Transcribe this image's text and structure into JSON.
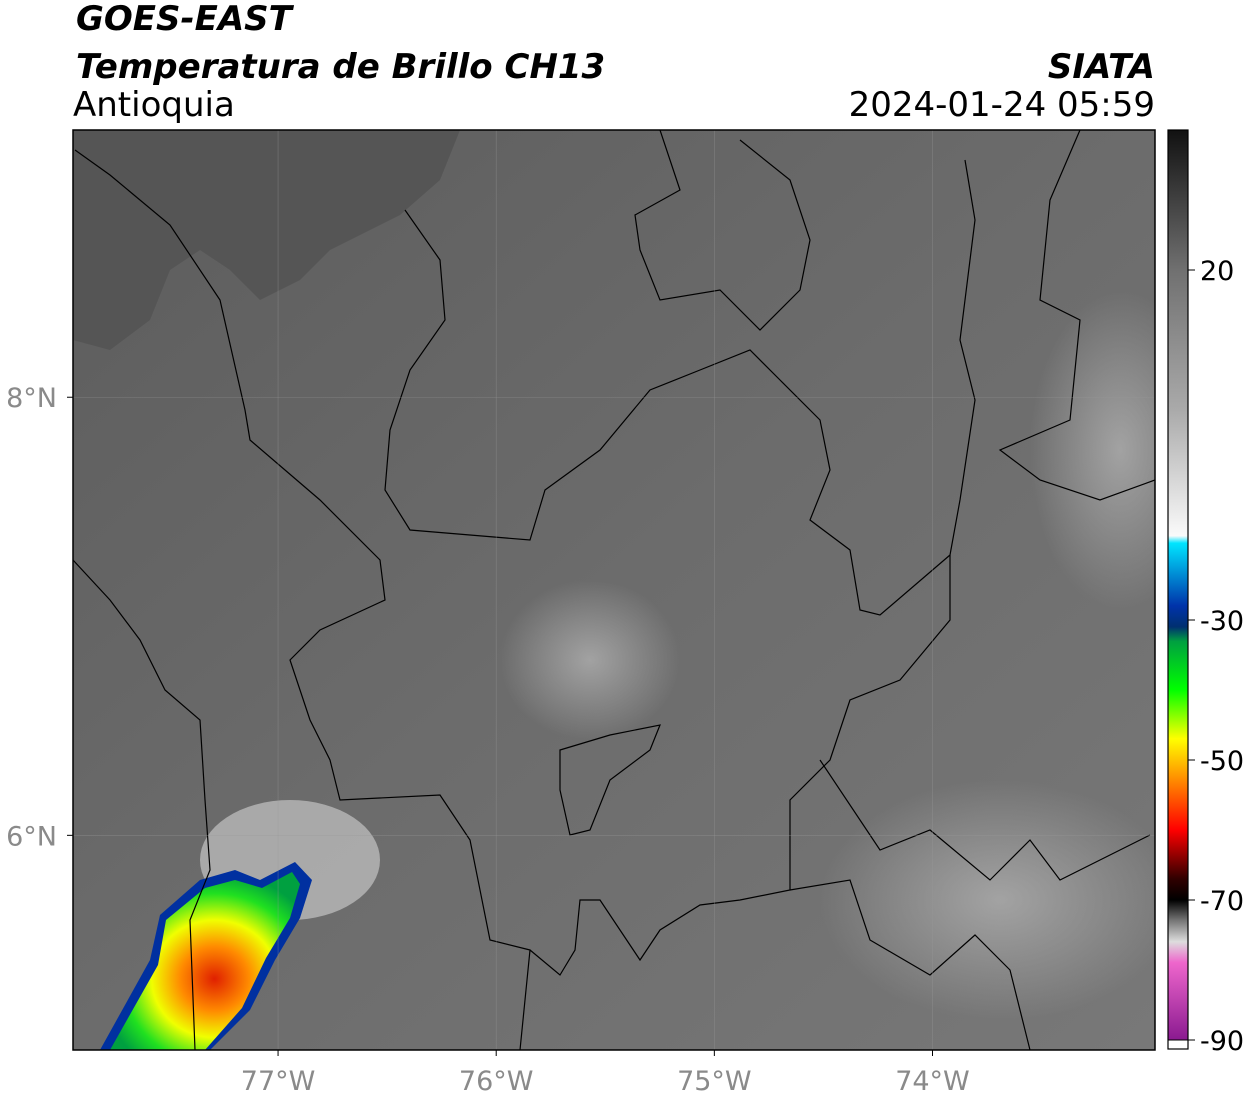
{
  "header": {
    "satellite": "GOES-EAST",
    "product": "Temperatura de Brillo CH13",
    "agency": "SIATA",
    "region": "Antioquia",
    "datetime": "2024-01-24 05:59"
  },
  "map": {
    "xlim": [
      -77.94,
      -72.98
    ],
    "ylim": [
      5.02,
      9.22
    ],
    "xticks": [
      {
        "value": -77,
        "label": "77°W"
      },
      {
        "value": -76,
        "label": "76°W"
      },
      {
        "value": -75,
        "label": "75°W"
      },
      {
        "value": -74,
        "label": "74°W"
      }
    ],
    "yticks": [
      {
        "value": 6,
        "label": "6°N"
      },
      {
        "value": 8,
        "label": "8°N"
      }
    ],
    "grid": true
  },
  "colorbar": {
    "lim": [
      -90,
      40
    ],
    "ticks": [
      20,
      -30,
      -50,
      -70,
      -90
    ]
  }
}
